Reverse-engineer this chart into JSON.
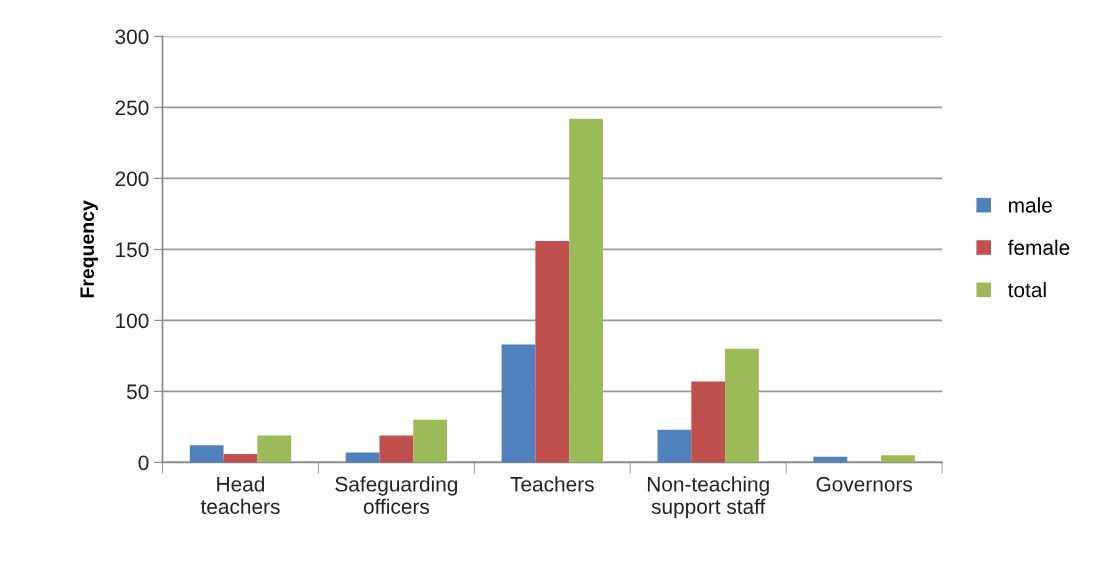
{
  "chart_data": {
    "type": "bar",
    "ylabel": "Frequency",
    "categories": [
      "Head\nteachers",
      "Safeguarding\nofficers",
      "Teachers",
      "Non-teaching\nsupport staff",
      "Governors"
    ],
    "series": [
      {
        "name": "male",
        "color": "#4f81bd",
        "values": [
          12,
          7,
          83,
          23,
          4
        ]
      },
      {
        "name": "female",
        "color": "#c0504d",
        "values": [
          6,
          19,
          156,
          57,
          0
        ]
      },
      {
        "name": "total",
        "color": "#9bbb59",
        "values": [
          19,
          30,
          242,
          80,
          5
        ]
      }
    ],
    "ylim": [
      0,
      300
    ],
    "yticks": [
      0,
      50,
      100,
      150,
      200,
      250,
      300
    ],
    "grid": "y",
    "legend": "right"
  }
}
